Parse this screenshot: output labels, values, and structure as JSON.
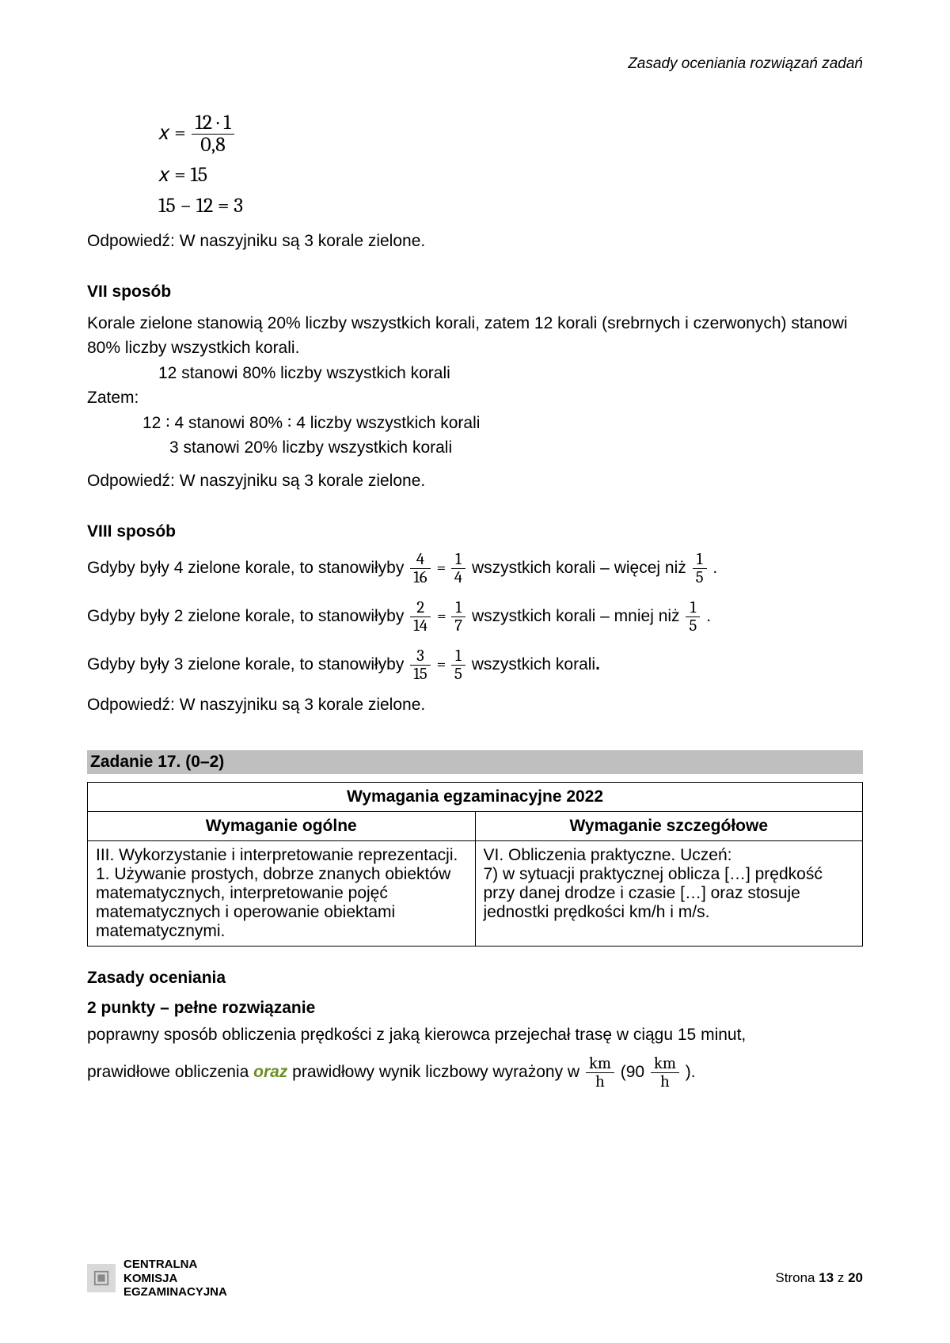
{
  "header": {
    "right": "Zasady oceniania rozwiązań zadań"
  },
  "eq_block": {
    "line1_lhs": "x =",
    "line1_num": "12 · 1",
    "line1_den": "0,8",
    "line2": "x = 15",
    "line3": "15 − 12 = 3"
  },
  "answer_text": "Odpowiedź: W naszyjniku są  3  korale zielone.",
  "method7": {
    "heading": "VII sposób",
    "p1": "Korale zielone stanowią  20%  liczby wszystkich korali, zatem 12 korali (srebrnych i czerwonych) stanowi  80%  liczby wszystkich korali.",
    "l1": "12  stanowi  80%  liczby wszystkich korali",
    "zatem": "Zatem:",
    "l2": "12 ∶ 4  stanowi   80%  ∶ 4  liczby wszystkich korali",
    "l3": "3  stanowi   20%   liczby wszystkich korali"
  },
  "method8": {
    "heading": "VIII sposób",
    "r1_pre": "Gdyby były 4 zielone korale, to stanowiłyby ",
    "r1_f1n": "4",
    "r1_f1d": "16",
    "r1_eq": " = ",
    "r1_f2n": "1",
    "r1_f2d": "4",
    "r1_mid": "  wszystkich korali – więcej niż ",
    "r1_f3n": "1",
    "r1_f3d": "5",
    "r1_end": ".",
    "r2_pre": "Gdyby były 2 zielone korale,  to stanowiłyby ",
    "r2_f1n": "2",
    "r2_f1d": "14",
    "r2_f2n": "1",
    "r2_f2d": "7",
    "r2_mid": "   wszystkich korali – mniej niż ",
    "r2_f3n": "1",
    "r2_f3d": "5",
    "r2_end": ".",
    "r3_pre": "Gdyby były 3 zielone korale,  to stanowiłyby ",
    "r3_f1n": "3",
    "r3_f1d": "15",
    "r3_f2n": "1",
    "r3_f2d": "5",
    "r3_mid": "   wszystkich korali",
    "r3_end": "."
  },
  "task17": {
    "bar": "Zadanie 17. (0–2)",
    "table": {
      "caption": "Wymagania egzaminacyjne 2022",
      "col1_head": "Wymaganie ogólne",
      "col2_head": "Wymaganie szczegółowe",
      "col1_body": "III. Wykorzystanie i interpretowanie reprezentacji.\n1. Używanie prostych, dobrze znanych obiektów matematycznych, interpretowanie pojęć matematycznych i operowanie obiektami matematycznymi.",
      "col2_body": "VI. Obliczenia praktyczne. Uczeń:\n7) w sytuacji praktycznej oblicza […] prędkość przy danej drodze i czasie […] oraz stosuje jednostki prędkości km/h i m/s."
    },
    "grading_head": "Zasady oceniania",
    "points_head": "2 punkty – pełne rozwiązanie",
    "p_pre": "poprawny sposób obliczenia prędkości z jaką kierowca przejechał trasę w ciągu 15 minut,",
    "p2_pre": "prawidłowe obliczenia ",
    "oraz": "oraz",
    "p2_mid": " prawidłowy wynik liczbowy wyrażony w  ",
    "unit_num": "km",
    "unit_den": "h",
    "p2_open": "  (90",
    "p2_close": ")."
  },
  "footer": {
    "logo1": "CENTRALNA",
    "logo2": "KOMISJA",
    "logo3": "EGZAMINACYJNA",
    "page_label_pre": "Strona ",
    "page_current": "13",
    "page_sep": " z ",
    "page_total": "20"
  }
}
